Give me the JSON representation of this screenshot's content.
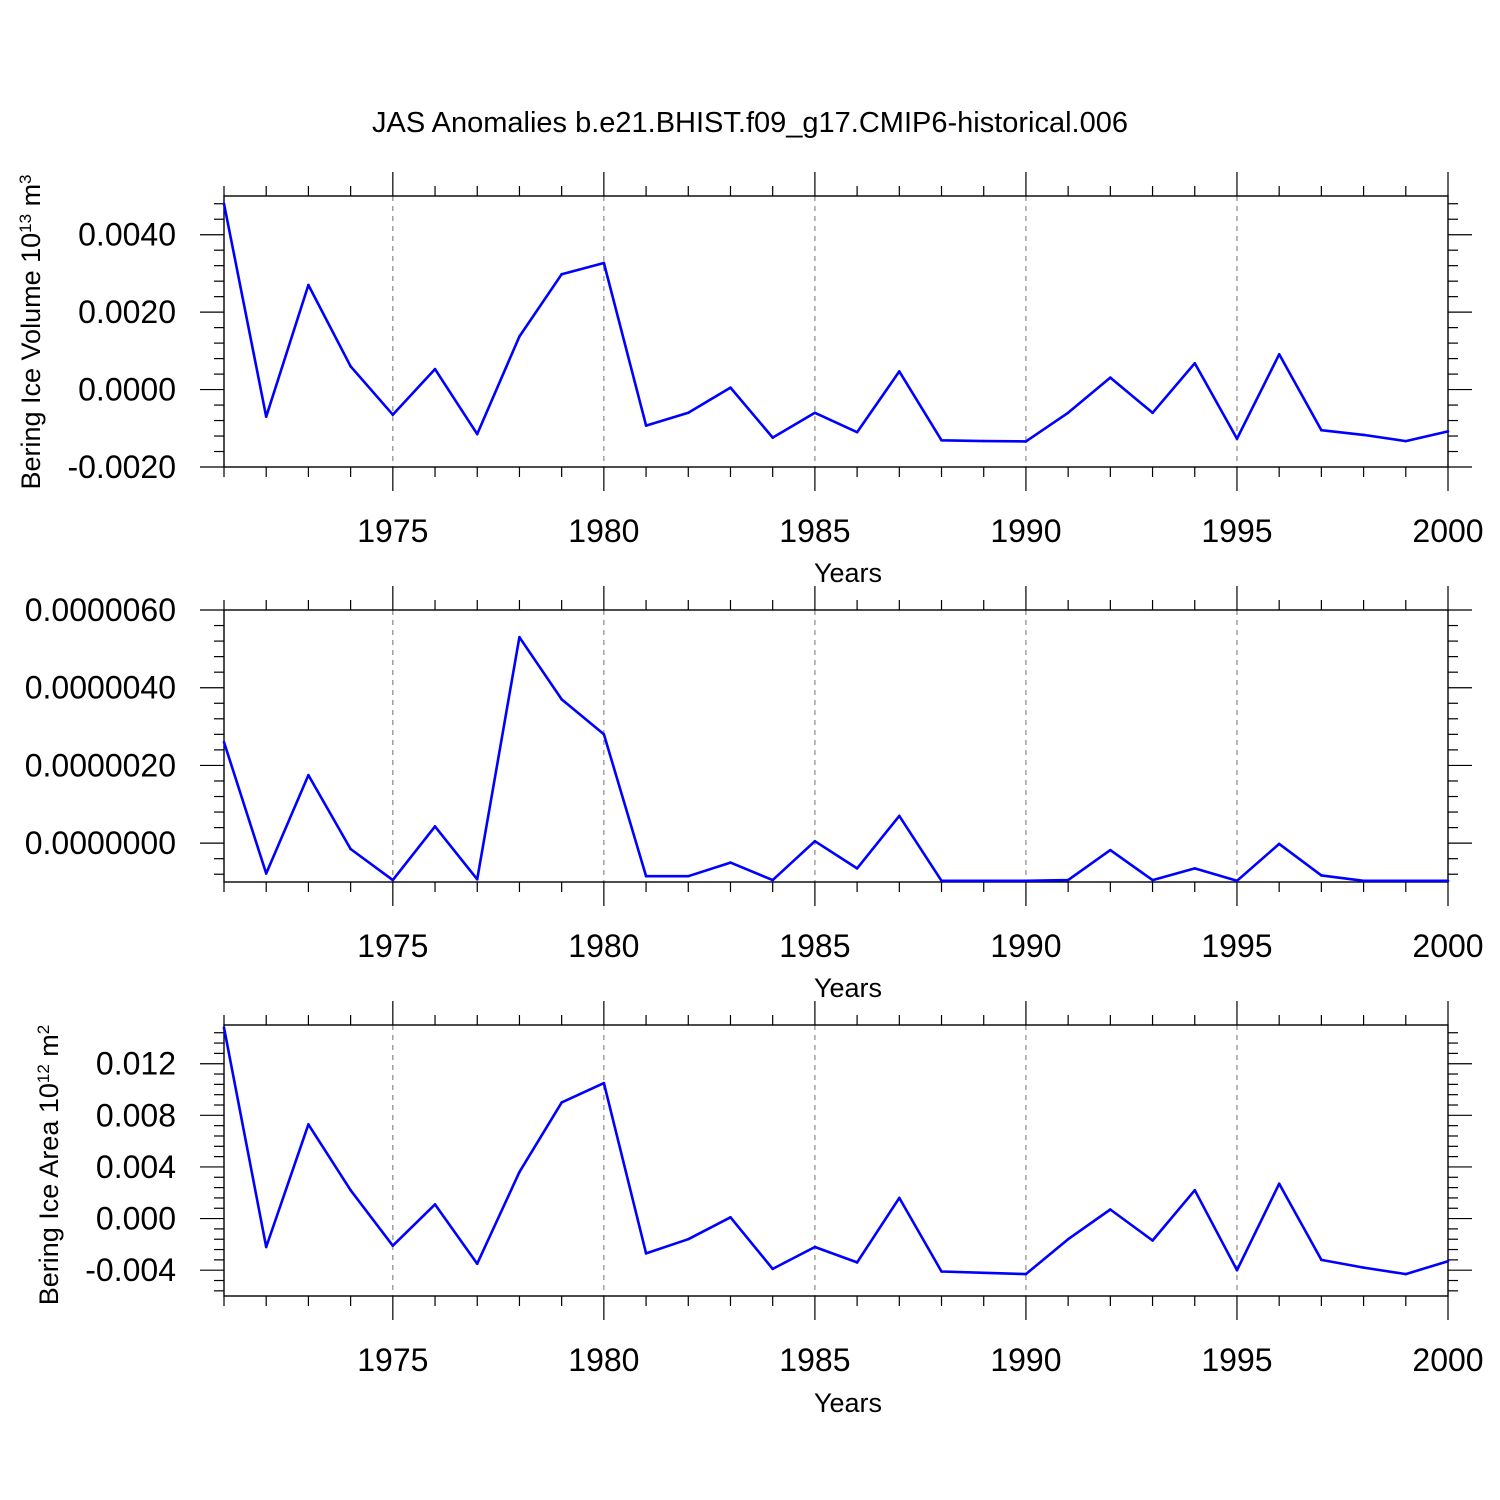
{
  "title": "JAS Anomalies b.e21.BHIST.f09_g17.CMIP6-historical.006",
  "colors": {
    "series": "#0000ff",
    "axis": "#000000",
    "grid": "#888888"
  },
  "chart_data": [
    {
      "type": "line",
      "xlabel": "Years",
      "ylabel": {
        "text": "Bering Ice Volume 10",
        "exp": "13",
        "unit": " m",
        "unit_exp": "3"
      },
      "xlim": [
        1971,
        2000
      ],
      "ylim": [
        -0.002,
        0.005
      ],
      "xticks": [
        1975,
        1980,
        1985,
        1990,
        1995,
        2000
      ],
      "xtick_labels": [
        "1975",
        "1980",
        "1985",
        "1990",
        "1995",
        "2000"
      ],
      "yticks": [
        -0.002,
        0.0,
        0.002,
        0.004
      ],
      "ytick_labels": [
        "-0.0020",
        "0.0000",
        "0.0020",
        "0.0040"
      ],
      "grid": "vertical dashed at major x ticks",
      "x": [
        1971,
        1972,
        1973,
        1974,
        1975,
        1976,
        1977,
        1978,
        1979,
        1980,
        1981,
        1982,
        1983,
        1984,
        1985,
        1986,
        1987,
        1988,
        1989,
        1990,
        1991,
        1992,
        1993,
        1994,
        1995,
        1996,
        1997,
        1998,
        1999,
        2000
      ],
      "values": [
        0.0048,
        -0.0007,
        0.0027,
        0.0006,
        -0.00065,
        0.00053,
        -0.00115,
        0.00137,
        0.00298,
        0.00327,
        -0.00093,
        -0.0006,
        5e-05,
        -0.00124,
        -0.0006,
        -0.0011,
        0.00047,
        -0.00131,
        -0.00133,
        -0.00134,
        -0.0006,
        0.00031,
        -0.0006,
        0.00068,
        -0.00127,
        0.00091,
        -0.00105,
        -0.00117,
        -0.00133,
        -0.00108
      ]
    },
    {
      "type": "line",
      "xlabel": "Years",
      "ylabel": {
        "text": "",
        "exp": "",
        "unit": "",
        "unit_exp": ""
      },
      "xlim": [
        1971,
        2000
      ],
      "ylim": [
        -1e-06,
        6e-06
      ],
      "xticks": [
        1975,
        1980,
        1985,
        1990,
        1995,
        2000
      ],
      "xtick_labels": [
        "1975",
        "1980",
        "1985",
        "1990",
        "1995",
        "2000"
      ],
      "yticks": [
        0.0,
        2e-06,
        4e-06,
        6e-06
      ],
      "ytick_labels": [
        "0.0000000",
        "0.0000020",
        "0.0000040",
        "0.0000060"
      ],
      "grid": "vertical dashed at major x ticks",
      "x": [
        1971,
        1972,
        1973,
        1974,
        1975,
        1976,
        1977,
        1978,
        1979,
        1980,
        1981,
        1982,
        1983,
        1984,
        1985,
        1986,
        1987,
        1988,
        1989,
        1990,
        1991,
        1992,
        1993,
        1994,
        1995,
        1996,
        1997,
        1998,
        1999,
        2000
      ],
      "values": [
        2.6e-06,
        -7.8e-07,
        1.75e-06,
        -1.5e-07,
        -9.5e-07,
        4.3e-07,
        -9.3e-07,
        5.3e-06,
        3.7e-06,
        2.8e-06,
        -8.5e-07,
        -8.5e-07,
        -5e-07,
        -9.5e-07,
        5e-08,
        -6.5e-07,
        7e-07,
        -9.7e-07,
        -9.7e-07,
        -9.7e-07,
        -9.5e-07,
        -1.8e-07,
        -9.5e-07,
        -6.5e-07,
        -9.7e-07,
        -2e-08,
        -8.3e-07,
        -9.7e-07,
        -9.7e-07,
        -9.7e-07
      ]
    },
    {
      "type": "line",
      "xlabel": "Years",
      "ylabel": {
        "text": "Bering Ice Area 10",
        "exp": "12",
        "unit": " m",
        "unit_exp": "2"
      },
      "xlim": [
        1971,
        2000
      ],
      "ylim": [
        -0.006,
        0.015
      ],
      "xticks": [
        1975,
        1980,
        1985,
        1990,
        1995,
        2000
      ],
      "xtick_labels": [
        "1975",
        "1980",
        "1985",
        "1990",
        "1995",
        "2000"
      ],
      "yticks": [
        -0.004,
        0.0,
        0.004,
        0.008,
        0.012
      ],
      "ytick_labels": [
        "-0.004",
        "0.000",
        "0.004",
        "0.008",
        "0.012"
      ],
      "grid": "vertical dashed at major x ticks",
      "x": [
        1971,
        1972,
        1973,
        1974,
        1975,
        1976,
        1977,
        1978,
        1979,
        1980,
        1981,
        1982,
        1983,
        1984,
        1985,
        1986,
        1987,
        1988,
        1989,
        1990,
        1991,
        1992,
        1993,
        1994,
        1995,
        1996,
        1997,
        1998,
        1999,
        2000
      ],
      "values": [
        0.0148,
        -0.0022,
        0.0073,
        0.0022,
        -0.0021,
        0.0011,
        -0.0035,
        0.0036,
        0.009,
        0.0105,
        -0.0027,
        -0.0016,
        0.0001,
        -0.0039,
        -0.0022,
        -0.0034,
        0.0016,
        -0.0041,
        -0.0042,
        -0.0043,
        -0.0016,
        0.0007,
        -0.0017,
        0.0022,
        -0.004,
        0.0027,
        -0.0032,
        -0.0038,
        -0.0043,
        -0.0033
      ]
    }
  ]
}
